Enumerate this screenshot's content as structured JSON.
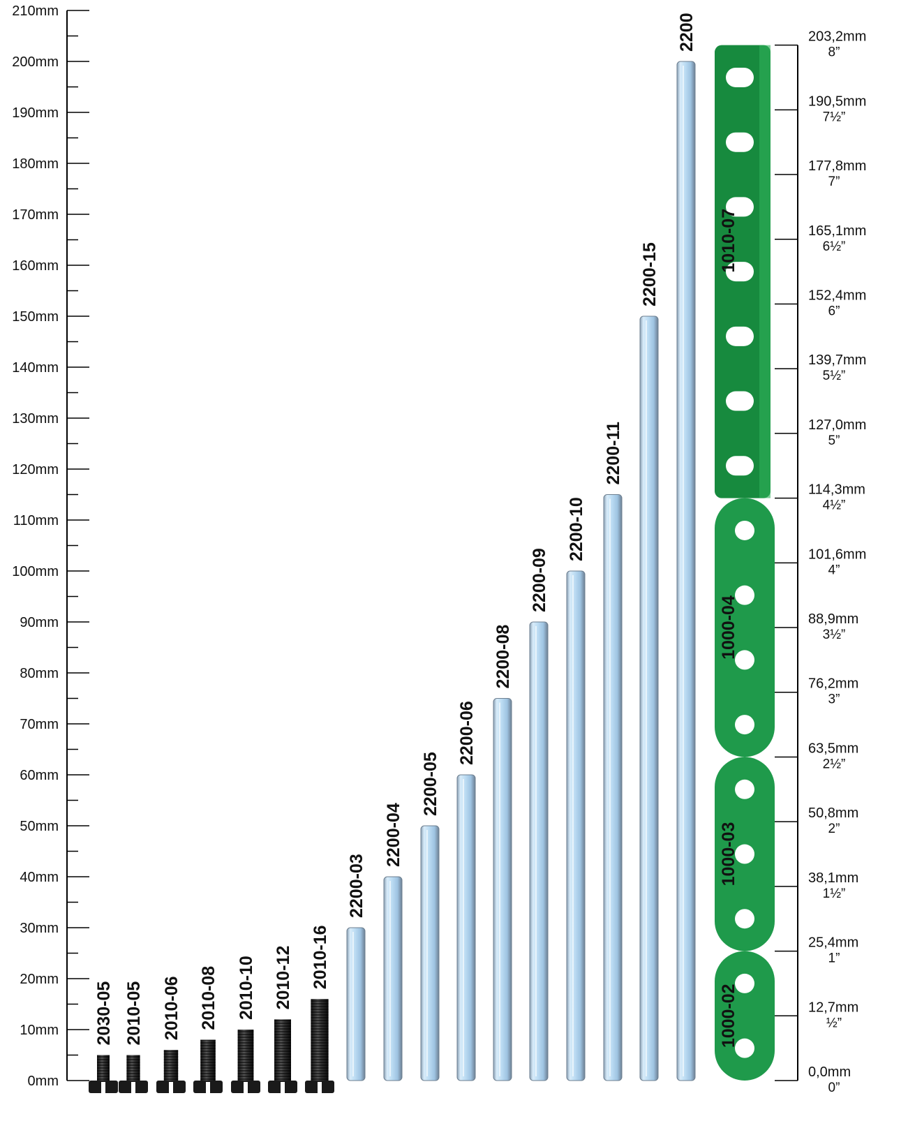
{
  "left_scale": {
    "unit": "mm",
    "labels": [
      "0mm",
      "10mm",
      "20mm",
      "30mm",
      "40mm",
      "50mm",
      "60mm",
      "70mm",
      "80mm",
      "90mm",
      "100mm",
      "110mm",
      "120mm",
      "130mm",
      "140mm",
      "150mm",
      "160mm",
      "170mm",
      "180mm",
      "190mm",
      "200mm",
      "210mm"
    ]
  },
  "right_scale": {
    "marks": [
      {
        "mm": "0,0mm",
        "inch": "0”"
      },
      {
        "mm": "12,7mm",
        "inch": "½”"
      },
      {
        "mm": "25,4mm",
        "inch": "1”"
      },
      {
        "mm": "38,1mm",
        "inch": "1½”"
      },
      {
        "mm": "50,8mm",
        "inch": "2”"
      },
      {
        "mm": "63,5mm",
        "inch": "2½”"
      },
      {
        "mm": "76,2mm",
        "inch": "3”"
      },
      {
        "mm": "88,9mm",
        "inch": "3½”"
      },
      {
        "mm": "101,6mm",
        "inch": "4”"
      },
      {
        "mm": "114,3mm",
        "inch": "4½”"
      },
      {
        "mm": "127,0mm",
        "inch": "5”"
      },
      {
        "mm": "139,7mm",
        "inch": "5½”"
      },
      {
        "mm": "152,4mm",
        "inch": "6”"
      },
      {
        "mm": "165,1mm",
        "inch": "6½”"
      },
      {
        "mm": "177,8mm",
        "inch": "7”"
      },
      {
        "mm": "190,5mm",
        "inch": "7½”"
      },
      {
        "mm": "203,2mm",
        "inch": "8”"
      }
    ]
  },
  "screws": [
    {
      "code": "2030-05",
      "length_mm": 5
    },
    {
      "code": "2010-05",
      "length_mm": 5
    },
    {
      "code": "2010-06",
      "length_mm": 6
    },
    {
      "code": "2010-08",
      "length_mm": 8
    },
    {
      "code": "2010-10",
      "length_mm": 10
    },
    {
      "code": "2010-12",
      "length_mm": 12
    },
    {
      "code": "2010-16",
      "length_mm": 16
    }
  ],
  "axles": [
    {
      "code": "2200-03",
      "length_mm": 30
    },
    {
      "code": "2200-04",
      "length_mm": 40
    },
    {
      "code": "2200-05",
      "length_mm": 50
    },
    {
      "code": "2200-06",
      "length_mm": 60
    },
    {
      "code": "2200-08",
      "length_mm": 75
    },
    {
      "code": "2200-09",
      "length_mm": 90
    },
    {
      "code": "2200-10",
      "length_mm": 100
    },
    {
      "code": "2200-11",
      "length_mm": 115
    },
    {
      "code": "2200-15",
      "length_mm": 150
    },
    {
      "code": "2200",
      "length_mm": 200
    }
  ],
  "strips": [
    {
      "code": "1000-02",
      "holes": 2,
      "from_mm": 0,
      "to_mm": 25.4
    },
    {
      "code": "1000-03",
      "holes": 3,
      "from_mm": 25.4,
      "to_mm": 63.5
    },
    {
      "code": "1000-04",
      "holes": 4,
      "from_mm": 63.5,
      "to_mm": 114.3
    }
  ],
  "angle_girder": {
    "code": "1010-07",
    "holes": 7,
    "from_mm": 114.3,
    "to_mm": 203.2
  },
  "colors": {
    "strip_green": "#1f9a4b",
    "girder_green": "#178a3e",
    "axle_blue": "#bfdff5",
    "screw_black": "#1a1a1a"
  }
}
